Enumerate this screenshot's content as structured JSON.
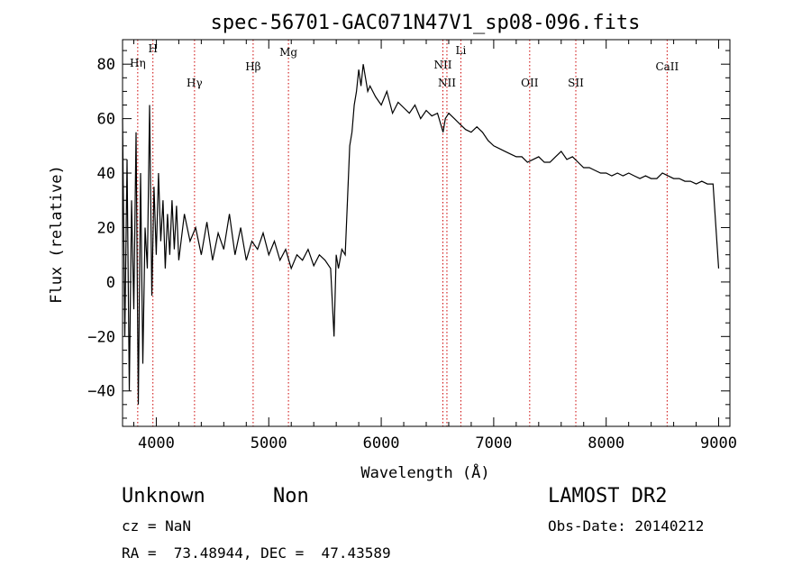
{
  "chart_data": {
    "type": "line",
    "title": "spec-56701-GAC071N47V1_sp08-096.fits",
    "xlabel": "Wavelength (Å)",
    "ylabel": "Flux (relative)",
    "xlim": [
      3700,
      9100
    ],
    "ylim": [
      -53,
      89
    ],
    "xticks": [
      4000,
      5000,
      6000,
      7000,
      8000,
      9000
    ],
    "yticks": [
      -40,
      -20,
      0,
      20,
      40,
      60,
      80
    ],
    "lines": [
      {
        "label": "Hη",
        "x": 3835
      },
      {
        "label": "H",
        "x": 3970
      },
      {
        "label": "Hγ",
        "x": 4340
      },
      {
        "label": "Hβ",
        "x": 4861
      },
      {
        "label": "Mg",
        "x": 5175
      },
      {
        "label": "NII",
        "x": 6548
      },
      {
        "label": "NII",
        "x": 6584
      },
      {
        "label": "Li",
        "x": 6708
      },
      {
        "label": "OII",
        "x": 7320
      },
      {
        "label": "SII",
        "x": 7730
      },
      {
        "label": "CaII",
        "x": 8542
      }
    ],
    "line_color": "#cc0000",
    "series_color": "#000000",
    "spectrum": {
      "x": [
        3700,
        3720,
        3740,
        3760,
        3780,
        3800,
        3820,
        3840,
        3860,
        3880,
        3900,
        3920,
        3940,
        3960,
        3980,
        4000,
        4020,
        4040,
        4060,
        4080,
        4100,
        4120,
        4140,
        4160,
        4180,
        4200,
        4250,
        4300,
        4350,
        4400,
        4450,
        4500,
        4550,
        4600,
        4650,
        4700,
        4750,
        4800,
        4850,
        4900,
        4950,
        5000,
        5050,
        5100,
        5150,
        5200,
        5250,
        5300,
        5350,
        5400,
        5450,
        5500,
        5550,
        5580,
        5600,
        5620,
        5650,
        5680,
        5700,
        5720,
        5740,
        5760,
        5780,
        5800,
        5820,
        5840,
        5860,
        5880,
        5900,
        5950,
        6000,
        6050,
        6100,
        6150,
        6200,
        6250,
        6300,
        6350,
        6400,
        6450,
        6500,
        6550,
        6570,
        6600,
        6650,
        6700,
        6750,
        6800,
        6850,
        6900,
        6950,
        7000,
        7050,
        7100,
        7150,
        7200,
        7250,
        7300,
        7350,
        7400,
        7450,
        7500,
        7550,
        7600,
        7650,
        7700,
        7750,
        7800,
        7850,
        7900,
        7950,
        8000,
        8050,
        8100,
        8150,
        8200,
        8250,
        8300,
        8350,
        8400,
        8450,
        8500,
        8550,
        8600,
        8650,
        8700,
        8750,
        8800,
        8850,
        8900,
        8950,
        9000
      ],
      "y": [
        60,
        -20,
        45,
        -40,
        30,
        -10,
        55,
        -45,
        40,
        -30,
        20,
        5,
        65,
        -5,
        35,
        10,
        40,
        15,
        30,
        5,
        25,
        10,
        30,
        12,
        28,
        8,
        25,
        15,
        20,
        10,
        22,
        8,
        18,
        12,
        25,
        10,
        20,
        8,
        15,
        12,
        18,
        10,
        15,
        8,
        12,
        5,
        10,
        8,
        12,
        6,
        10,
        8,
        5,
        -20,
        10,
        5,
        12,
        10,
        30,
        50,
        55,
        65,
        70,
        78,
        72,
        80,
        75,
        70,
        72,
        68,
        65,
        70,
        62,
        66,
        64,
        62,
        65,
        60,
        63,
        61,
        62,
        55,
        60,
        62,
        60,
        58,
        56,
        55,
        57,
        55,
        52,
        50,
        49,
        48,
        47,
        46,
        46,
        44,
        45,
        46,
        44,
        44,
        46,
        48,
        45,
        46,
        44,
        42,
        42,
        41,
        40,
        40,
        39,
        40,
        39,
        40,
        39,
        38,
        39,
        38,
        38,
        40,
        39,
        38,
        38,
        37,
        37,
        36,
        37,
        36,
        36,
        5
      ]
    }
  },
  "info": {
    "class_label": "Unknown",
    "subclass_label": "Non",
    "survey": "LAMOST DR2",
    "cz": "cz = NaN",
    "obs_date": "Obs-Date: 20140212",
    "coords": "RA =  73.48944, DEC =  47.43589"
  }
}
